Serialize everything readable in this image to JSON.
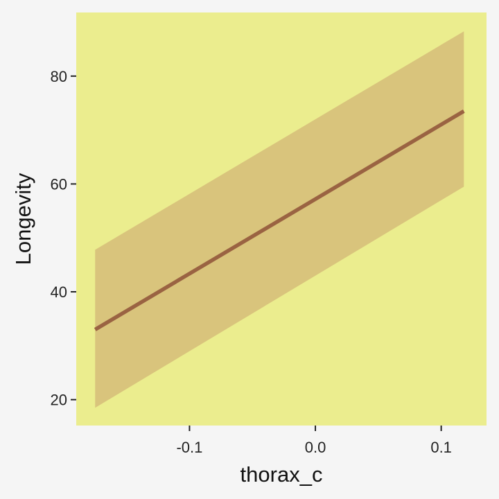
{
  "chart_data": {
    "type": "line",
    "xlabel": "thorax_c",
    "ylabel": "Longevity",
    "xlim": [
      -0.19,
      0.136
    ],
    "ylim": [
      15.2,
      91.8
    ],
    "x_ticks": [
      -0.1,
      0.0,
      0.1
    ],
    "x_tick_labels": [
      "-0.1",
      "0.0",
      "0.1"
    ],
    "y_ticks": [
      20,
      40,
      60,
      80
    ],
    "y_tick_labels": [
      "20",
      "40",
      "60",
      "80"
    ],
    "grid": false,
    "series": [
      {
        "x": [
          -0.175,
          0.118
        ],
        "y": [
          33.0,
          73.5
        ],
        "lower": [
          18.5,
          59.5
        ],
        "upper": [
          47.8,
          88.3
        ]
      }
    ],
    "colors": {
      "page_background": "#f5f5f5",
      "panel_background": "#ebed8e",
      "ribbon": "#d9c47c",
      "line": "#9a6342",
      "axis_ticks": "#222222"
    }
  }
}
